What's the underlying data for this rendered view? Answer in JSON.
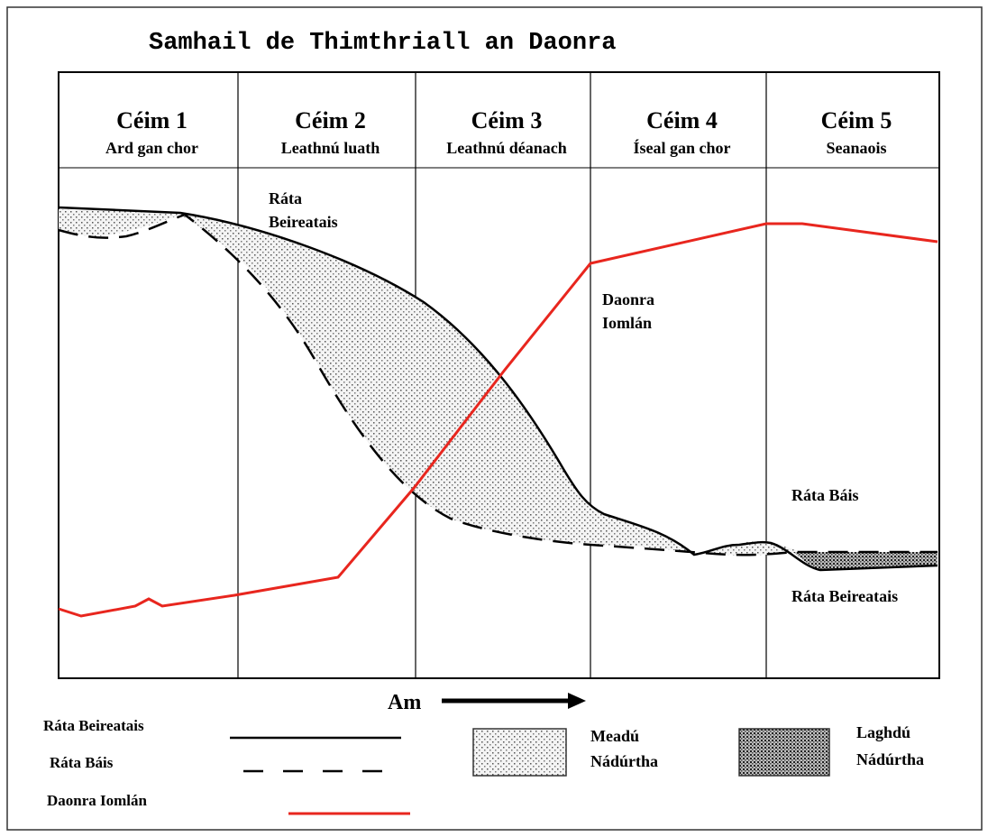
{
  "title": "Samhail de Thimthriall an Daonra",
  "stages": [
    {
      "number": "Céim 1",
      "name": "Ard gan chor"
    },
    {
      "number": "Céim 2",
      "name": "Leathnú luath"
    },
    {
      "number": "Céim 3",
      "name": "Leathnú déanach"
    },
    {
      "number": "Céim 4",
      "name": "Íseal gan chor"
    },
    {
      "number": "Céim 5",
      "name": "Seanaois"
    }
  ],
  "curve_labels": {
    "birth_rate": [
      "Ráta",
      "Beireatais"
    ],
    "population": [
      "Daonra",
      "Iomlán"
    ],
    "death_rate_late": "Ráta Báis",
    "birth_rate_late": "Ráta Beireatais"
  },
  "time_label": "Am",
  "legend": {
    "birth_rate": "Ráta Beireatais",
    "death_rate": "Ráta Báis",
    "population": "Daonra Iomlán",
    "natural_increase": [
      "Meadú",
      "Nádúrtha"
    ],
    "natural_decrease": [
      "Laghdú",
      "Nádúrtha"
    ]
  }
}
